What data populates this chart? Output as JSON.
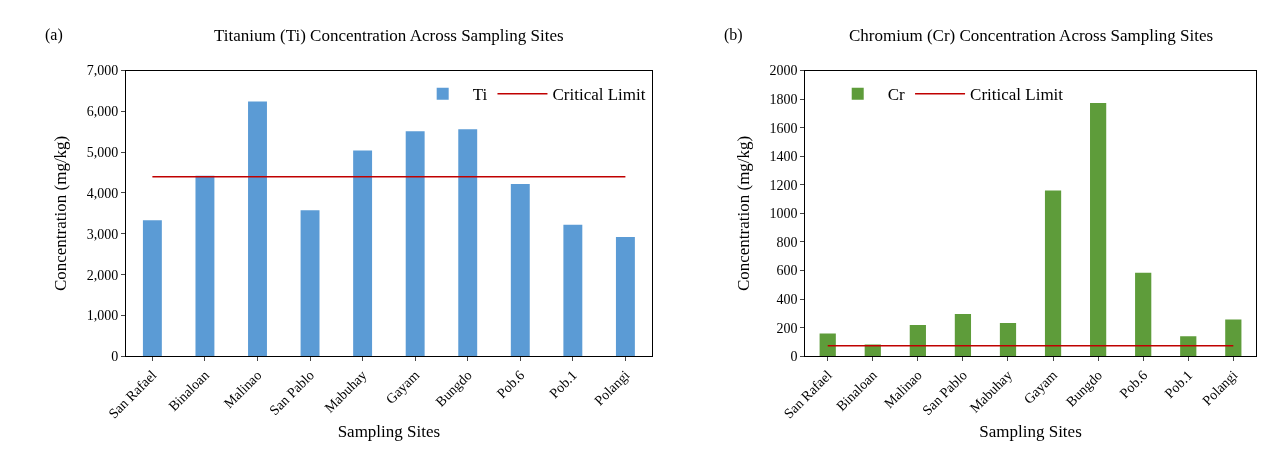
{
  "chart_data": [
    {
      "type": "bar",
      "title": "Titanium (Ti) Concentration Across Sampling Sites",
      "xlabel": "Sampling Sites",
      "ylabel": "Concentration (mg/kg)",
      "annotations": [
        "(a)"
      ],
      "categories": [
        "San Rafael",
        "Binaloan",
        "Malinao",
        "San Pablo",
        "Mabuhay",
        "Gayam",
        "Bungdo",
        "Pob.6",
        "Pob.1",
        "Polangi"
      ],
      "series": [
        {
          "name": "Ti",
          "color": "#5b9bd5",
          "values": [
            3330,
            4420,
            6240,
            3580,
            5040,
            5510,
            5560,
            4220,
            3220,
            2920
          ]
        },
        {
          "name": "Critical Limit",
          "type": "line",
          "color": "#c00000",
          "values": [
            4400,
            4400,
            4400,
            4400,
            4400,
            4400,
            4400,
            4400,
            4400,
            4400
          ]
        }
      ],
      "ylim": [
        0,
        7000
      ],
      "yticks": [
        0,
        {
          "value": 1000,
          "label": "1,000"
        },
        {
          "value": 2000,
          "label": "2,000"
        },
        {
          "value": 3000,
          "label": "3,000"
        },
        {
          "value": 4000,
          "label": "4,000"
        },
        {
          "value": 5000,
          "label": "5,000"
        },
        {
          "value": 6000,
          "label": "6,000"
        },
        {
          "value": 7000,
          "label": "7,000"
        }
      ],
      "legend": "top right"
    },
    {
      "type": "bar",
      "title": "Chromium (Cr) Concentration Across Sampling Sites",
      "xlabel": "Sampling Sites",
      "ylabel": "Concentration (mg/kg)",
      "annotations": [
        "(b)"
      ],
      "categories": [
        "San Rafael",
        "Binaloan",
        "Malinao",
        "San Pablo",
        "Mabuhay",
        "Gayam",
        "Bungdo",
        "Pob.6",
        "Pob.1",
        "Polangi"
      ],
      "series": [
        {
          "name": "Cr",
          "color": "#5e9c3a",
          "values": [
            160,
            82,
            219,
            296,
            233,
            1161,
            1772,
            584,
            141,
            258
          ]
        },
        {
          "name": "Critical Limit",
          "type": "line",
          "color": "#c00000",
          "values": [
            73,
            73,
            73,
            73,
            73,
            73,
            73,
            73,
            73,
            73
          ]
        }
      ],
      "ylim": [
        0,
        2000
      ],
      "yticks": [
        0,
        200,
        400,
        600,
        800,
        1000,
        1200,
        1400,
        1600,
        1800,
        2000
      ],
      "legend": "top left"
    }
  ]
}
